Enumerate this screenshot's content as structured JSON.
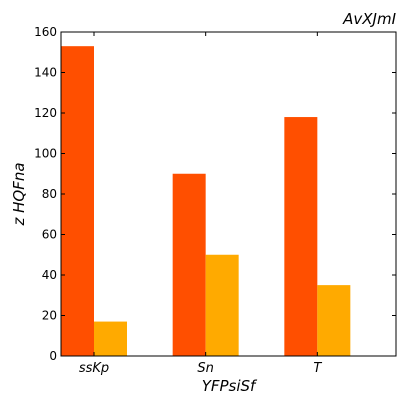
{
  "chart_data": {
    "type": "bar",
    "title": "AvXJmI",
    "xlabel": "YFPsiSf",
    "ylabel": "z HQFna",
    "categories": [
      "ssKp",
      "Sn",
      "T"
    ],
    "series": [
      {
        "values": [
          153,
          90,
          118
        ],
        "color": "#ff4f00"
      },
      {
        "values": [
          17,
          50,
          35
        ],
        "color": "#ffaa00"
      }
    ],
    "ylim": [
      0,
      160
    ],
    "yticks": [
      0,
      20,
      40,
      60,
      80,
      100,
      120,
      140,
      160
    ],
    "grid": false,
    "legend": "none"
  }
}
